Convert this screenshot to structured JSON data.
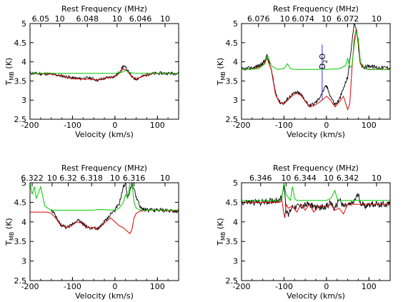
{
  "chart_data": [
    {
      "type": "line",
      "xlabel": "Velocity (km/s)",
      "ylabel": "T_MB (K)",
      "top_axis_label": "Rest Frequency (MHz)",
      "xlim": [
        -200,
        150
      ],
      "ylim": [
        2.5,
        5
      ],
      "x_ticks": [
        -200,
        -100,
        0,
        100
      ],
      "y_ticks": [
        2.5,
        3,
        3.5,
        4,
        4.5,
        5
      ],
      "top_ticks": [
        {
          "v": -175,
          "label": "6.05"
        },
        {
          "v": -130,
          "label": "10"
        },
        {
          "v": -65,
          "label": "6.048"
        },
        {
          "v": 5,
          "label": "10"
        },
        {
          "v": 60,
          "label": "6.046"
        },
        {
          "v": 118,
          "label": "10"
        }
      ],
      "series": [
        {
          "color": "#000000",
          "noise": 0.04,
          "x": [
            -200,
            -150,
            -120,
            -100,
            -80,
            -60,
            -40,
            -20,
            0,
            10,
            20,
            30,
            40,
            50,
            60,
            80,
            100,
            150
          ],
          "y": [
            3.7,
            3.68,
            3.62,
            3.58,
            3.56,
            3.58,
            3.52,
            3.58,
            3.62,
            3.72,
            3.9,
            3.78,
            3.6,
            3.55,
            3.6,
            3.68,
            3.7,
            3.7
          ]
        },
        {
          "color": "#e00000",
          "noise": 0,
          "x": [
            -200,
            -150,
            -120,
            -100,
            -80,
            -60,
            -40,
            -20,
            0,
            10,
            20,
            30,
            40,
            50,
            60,
            80,
            100,
            150
          ],
          "y": [
            3.7,
            3.68,
            3.62,
            3.56,
            3.55,
            3.55,
            3.52,
            3.58,
            3.62,
            3.7,
            3.82,
            3.75,
            3.6,
            3.55,
            3.6,
            3.68,
            3.7,
            3.7
          ]
        },
        {
          "color": "#00cc00",
          "noise": 0,
          "x": [
            -200,
            -150,
            -100,
            -50,
            0,
            15,
            25,
            35,
            50,
            100,
            150
          ],
          "y": [
            3.7,
            3.7,
            3.7,
            3.7,
            3.7,
            3.72,
            3.78,
            3.72,
            3.7,
            3.7,
            3.7
          ]
        }
      ]
    },
    {
      "type": "line",
      "xlabel": "Velocity (km/s)",
      "ylabel": "T_MB (K)",
      "top_axis_label": "Rest Frequency (MHz)",
      "xlim": [
        -200,
        150
      ],
      "ylim": [
        2.5,
        5
      ],
      "x_ticks": [
        -200,
        -100,
        0,
        100
      ],
      "y_ticks": [
        2.5,
        3,
        3.5,
        4,
        4.5,
        5
      ],
      "top_ticks": [
        {
          "v": -160,
          "label": "6.076"
        },
        {
          "v": -98,
          "label": "10"
        },
        {
          "v": -55,
          "label": "6.074"
        },
        {
          "v": 0,
          "label": "10"
        },
        {
          "v": 50,
          "label": "6.072"
        },
        {
          "v": 118,
          "label": "10"
        }
      ],
      "annotation": {
        "text": "D2O",
        "x": -10,
        "y_top": 4.55,
        "y_bottom": 3.0,
        "color": "#3333dd"
      },
      "series": [
        {
          "color": "#000000",
          "noise": 0.05,
          "x": [
            -200,
            -170,
            -150,
            -140,
            -130,
            -120,
            -110,
            -100,
            -90,
            -80,
            -70,
            -60,
            -50,
            -40,
            -30,
            -20,
            -10,
            0,
            10,
            20,
            30,
            40,
            50,
            60,
            65,
            70,
            75,
            80,
            90,
            100,
            120,
            150
          ],
          "y": [
            3.8,
            3.85,
            3.95,
            4.15,
            3.8,
            3.2,
            2.95,
            2.92,
            3.05,
            3.15,
            3.2,
            3.15,
            3.0,
            2.85,
            2.9,
            3.0,
            3.2,
            3.38,
            3.1,
            2.88,
            3.0,
            3.3,
            3.6,
            4.5,
            5.0,
            4.9,
            4.4,
            3.95,
            3.85,
            3.9,
            3.85,
            3.85
          ]
        },
        {
          "color": "#e00000",
          "noise": 0,
          "x": [
            -200,
            -170,
            -150,
            -140,
            -130,
            -120,
            -110,
            -100,
            -90,
            -80,
            -70,
            -60,
            -50,
            -40,
            -30,
            -20,
            -10,
            0,
            10,
            20,
            30,
            40,
            50,
            55,
            60,
            65,
            70,
            75,
            80,
            90,
            100,
            120,
            150
          ],
          "y": [
            3.8,
            3.82,
            3.9,
            4.1,
            3.8,
            3.15,
            2.92,
            2.9,
            3.02,
            3.12,
            3.18,
            3.12,
            2.98,
            2.82,
            2.85,
            2.92,
            3.0,
            3.1,
            3.0,
            2.82,
            2.95,
            3.1,
            2.75,
            2.9,
            3.8,
            4.55,
            4.85,
            4.5,
            3.95,
            3.82,
            3.8,
            3.8,
            3.8
          ]
        },
        {
          "color": "#00cc00",
          "noise": 0,
          "x": [
            -200,
            -160,
            -145,
            -138,
            -130,
            -115,
            -100,
            -92,
            -85,
            -75,
            -60,
            0,
            30,
            45,
            50,
            55,
            60,
            65,
            70,
            75,
            80,
            90,
            110,
            150
          ],
          "y": [
            3.8,
            3.82,
            3.95,
            4.15,
            3.9,
            3.8,
            3.82,
            3.95,
            3.82,
            3.8,
            3.8,
            3.8,
            3.82,
            3.9,
            4.1,
            3.85,
            3.9,
            4.4,
            4.8,
            4.6,
            4.0,
            3.82,
            3.8,
            3.8
          ]
        },
        {
          "color": "#3333dd",
          "noise": 0,
          "x": [
            -10,
            -10
          ],
          "y": [
            3.0,
            4.45
          ]
        }
      ]
    },
    {
      "type": "line",
      "xlabel": "Velocity (km/s)",
      "ylabel": "T_MB (K)",
      "top_axis_label": "Rest Frequency (MHz)",
      "xlim": [
        -200,
        150
      ],
      "ylim": [
        2.5,
        5
      ],
      "x_ticks": [
        -200,
        -100,
        0,
        100
      ],
      "y_ticks": [
        2.5,
        3,
        3.5,
        4,
        4.5,
        5
      ],
      "top_ticks": [
        {
          "v": -195,
          "label": "6.322"
        },
        {
          "v": -148,
          "label": "10"
        },
        {
          "v": -110,
          "label": "6.32"
        },
        {
          "v": -55,
          "label": "6.318"
        },
        {
          "v": 0,
          "label": "10"
        },
        {
          "v": 45,
          "label": "6.316"
        },
        {
          "v": 118,
          "label": "10"
        }
      ],
      "series": [
        {
          "color": "#000000",
          "noise": 0.05,
          "x": [
            -150,
            -140,
            -130,
            -120,
            -110,
            -100,
            -90,
            -80,
            -70,
            -60,
            -50,
            -40,
            -30,
            -20,
            -10,
            0,
            10,
            20,
            25,
            30,
            40,
            50,
            60,
            80,
            100,
            150
          ],
          "y": [
            4.3,
            4.15,
            3.95,
            3.88,
            3.85,
            3.95,
            4.05,
            4.0,
            3.9,
            3.85,
            3.85,
            3.8,
            3.95,
            4.05,
            4.2,
            4.3,
            4.45,
            4.9,
            5.0,
            4.6,
            5.0,
            4.65,
            4.35,
            4.3,
            4.3,
            4.28
          ]
        },
        {
          "color": "#e00000",
          "noise": 0,
          "x": [
            -200,
            -160,
            -150,
            -140,
            -130,
            -120,
            -110,
            -100,
            -90,
            -80,
            -70,
            -60,
            -50,
            -40,
            -30,
            -20,
            -10,
            0,
            10,
            20,
            30,
            35,
            40,
            45,
            50,
            60,
            80,
            100,
            150
          ],
          "y": [
            4.25,
            4.25,
            4.22,
            4.1,
            3.95,
            3.88,
            3.85,
            3.92,
            4.0,
            3.98,
            3.88,
            3.85,
            3.85,
            3.8,
            3.92,
            4.02,
            4.1,
            4.0,
            3.9,
            3.85,
            3.75,
            3.7,
            3.8,
            4.1,
            4.22,
            4.28,
            4.3,
            4.3,
            4.28
          ]
        },
        {
          "color": "#00cc00",
          "noise": 0,
          "x": [
            -200,
            -195,
            -190,
            -185,
            -175,
            -165,
            -158,
            -150,
            -100,
            -50,
            -40,
            0,
            10,
            20,
            25,
            30,
            35,
            40,
            45,
            50,
            60,
            80,
            150
          ],
          "y": [
            5.0,
            4.7,
            4.9,
            4.6,
            4.9,
            4.4,
            4.35,
            4.3,
            4.3,
            4.3,
            4.32,
            4.3,
            4.35,
            4.5,
            4.7,
            4.6,
            5.0,
            5.0,
            4.5,
            4.35,
            4.3,
            4.3,
            4.3
          ]
        }
      ]
    },
    {
      "type": "line",
      "xlabel": "Velocity (km/s)",
      "ylabel": "T_MB (K)",
      "top_axis_label": "Rest Frequency (MHz)",
      "xlim": [
        -200,
        150
      ],
      "ylim": [
        2.5,
        5
      ],
      "x_ticks": [
        -200,
        -100,
        0,
        100
      ],
      "y_ticks": [
        2.5,
        3,
        3.5,
        4,
        4.5,
        5
      ],
      "top_ticks": [
        {
          "v": -155,
          "label": "6.346"
        },
        {
          "v": -95,
          "label": "10"
        },
        {
          "v": -50,
          "label": "6.344"
        },
        {
          "v": 5,
          "label": "10"
        },
        {
          "v": 50,
          "label": "6.342"
        },
        {
          "v": 118,
          "label": "10"
        }
      ],
      "series": [
        {
          "color": "#000000",
          "noise": 0.08,
          "x": [
            -200,
            -150,
            -120,
            -105,
            -100,
            -95,
            -90,
            -85,
            -80,
            -60,
            -40,
            -20,
            0,
            10,
            20,
            30,
            40,
            60,
            75,
            80,
            90,
            100,
            150
          ],
          "y": [
            4.5,
            4.5,
            4.55,
            4.6,
            5.0,
            4.3,
            4.15,
            4.3,
            4.4,
            4.4,
            4.45,
            4.35,
            4.4,
            4.5,
            4.3,
            4.6,
            4.4,
            4.45,
            4.7,
            4.5,
            4.4,
            4.45,
            4.45
          ]
        },
        {
          "color": "#e00000",
          "noise": 0,
          "x": [
            -200,
            -110,
            -105,
            -100,
            -98,
            -95,
            -90,
            -80,
            -70,
            -60,
            -50,
            -40,
            -30,
            -20,
            -10,
            0,
            10,
            20,
            30,
            40,
            50,
            60,
            80,
            100,
            150
          ],
          "y": [
            4.5,
            4.5,
            4.55,
            4.2,
            4.1,
            4.45,
            4.35,
            4.4,
            4.25,
            4.45,
            4.3,
            4.45,
            4.25,
            4.4,
            4.4,
            4.38,
            4.45,
            4.3,
            4.35,
            4.2,
            4.45,
            4.45,
            4.45,
            4.45,
            4.45
          ]
        },
        {
          "color": "#00cc00",
          "noise": 0,
          "x": [
            -200,
            -110,
            -105,
            -100,
            -95,
            -85,
            -80,
            -75,
            -70,
            -60,
            -20,
            0,
            10,
            20,
            25,
            30,
            40,
            60,
            150
          ],
          "y": [
            4.55,
            4.55,
            4.6,
            5.0,
            4.7,
            4.55,
            4.9,
            4.6,
            4.55,
            4.55,
            4.55,
            4.55,
            4.6,
            4.8,
            4.6,
            4.55,
            4.55,
            4.55,
            4.55
          ]
        }
      ]
    }
  ]
}
